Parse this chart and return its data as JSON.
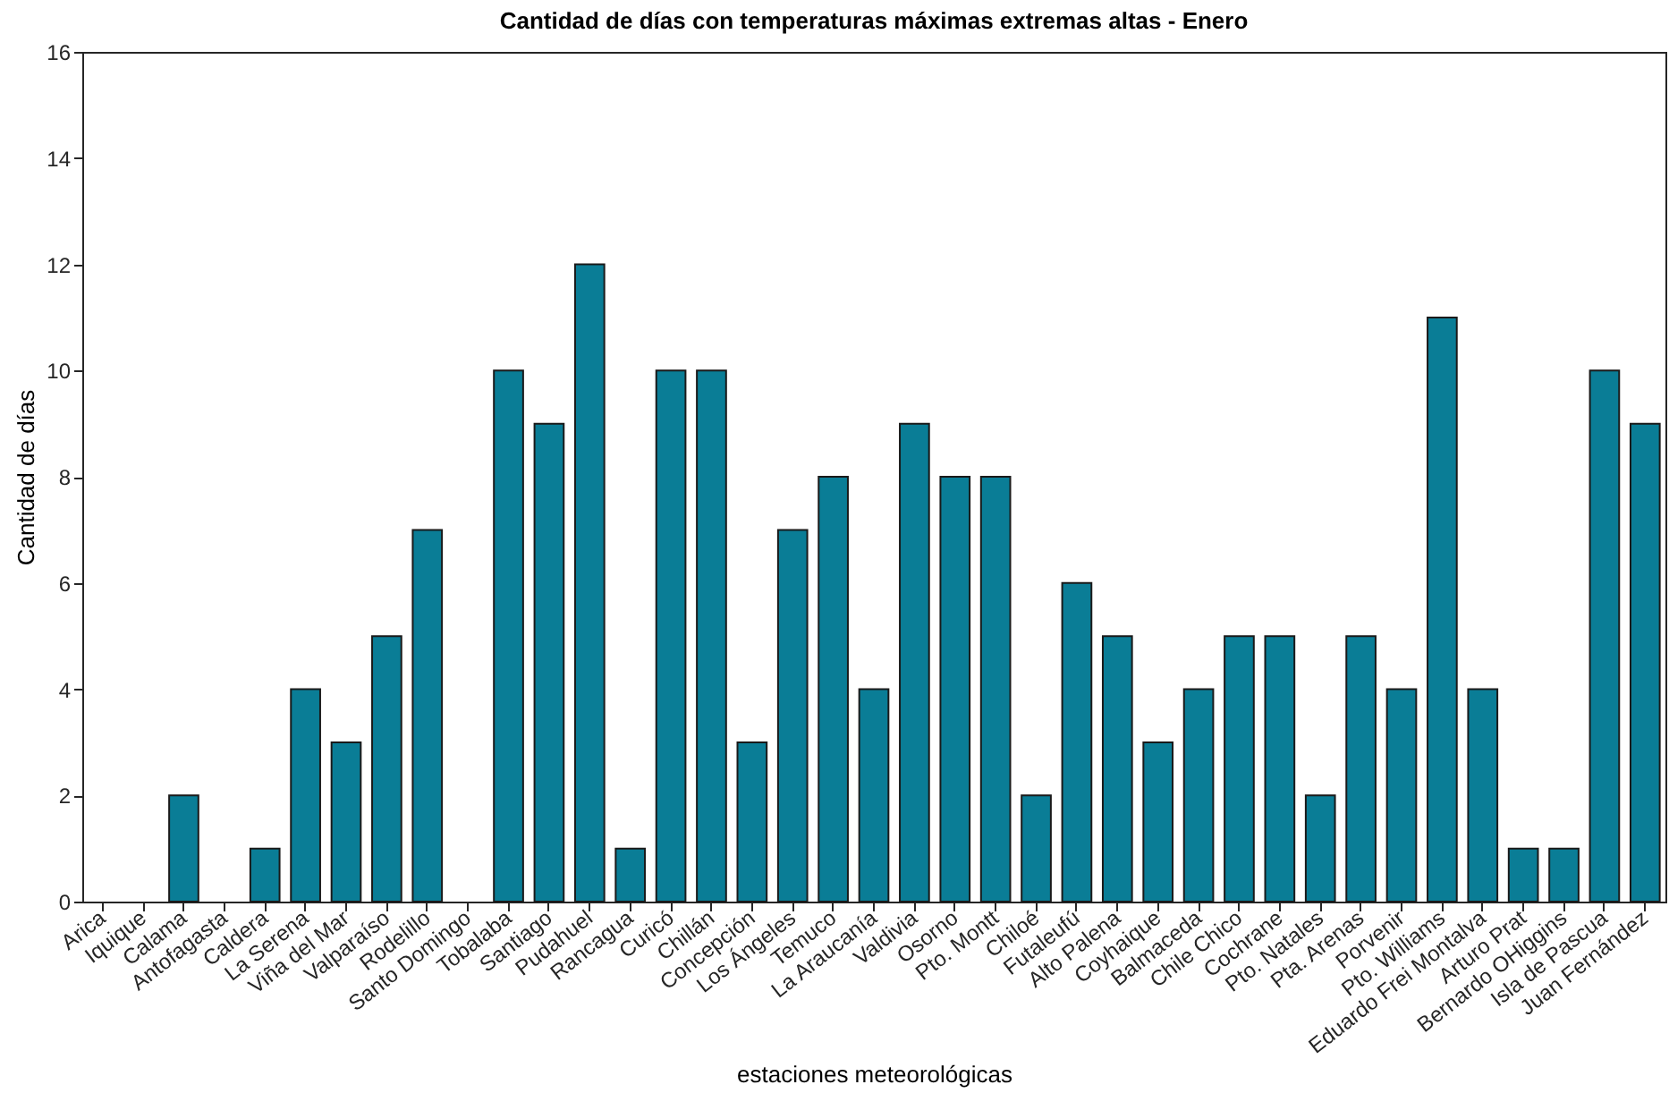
{
  "chart_data": {
    "type": "bar",
    "title": "Cantidad de días con temperaturas máximas extremas altas - Enero",
    "xlabel": "estaciones meteorológicas",
    "ylabel": "Cantidad de días",
    "categories": [
      "Arica",
      "Iquique",
      "Calama",
      "Antofagasta",
      "Caldera",
      "La Serena",
      "Viña del Mar",
      "Valparaíso",
      "Rodelillo",
      "Santo Domingo",
      "Tobalaba",
      "Santiago",
      "Pudahuel",
      "Rancagua",
      "Curicó",
      "Chillán",
      "Concepción",
      "Los Ángeles",
      "Temuco",
      "La Araucanía",
      "Valdivia",
      "Osorno",
      "Pto. Montt",
      "Chiloé",
      "Futaleufú",
      "Alto Palena",
      "Coyhaique",
      "Balmaceda",
      "Chile Chico",
      "Cochrane",
      "Pto. Natales",
      "Pta. Arenas",
      "Porvenir",
      "Pto. Williams",
      "Eduardo Frei Montalva",
      "Arturo Prat",
      "Bernardo OHiggins",
      "Isla de Pascua",
      "Juan Fernández"
    ],
    "values": [
      0,
      0,
      2,
      0,
      1,
      4,
      3,
      5,
      7,
      0,
      10,
      9,
      12,
      1,
      10,
      10,
      3,
      7,
      8,
      4,
      9,
      8,
      8,
      2,
      6,
      5,
      3,
      4,
      5,
      5,
      2,
      5,
      4,
      11,
      4,
      1,
      1,
      10,
      9
    ],
    "color": "#0a7d96",
    "ylim": [
      0,
      16
    ],
    "yticks": [
      0,
      2,
      4,
      6,
      8,
      10,
      12,
      14,
      16
    ],
    "grid": false
  }
}
